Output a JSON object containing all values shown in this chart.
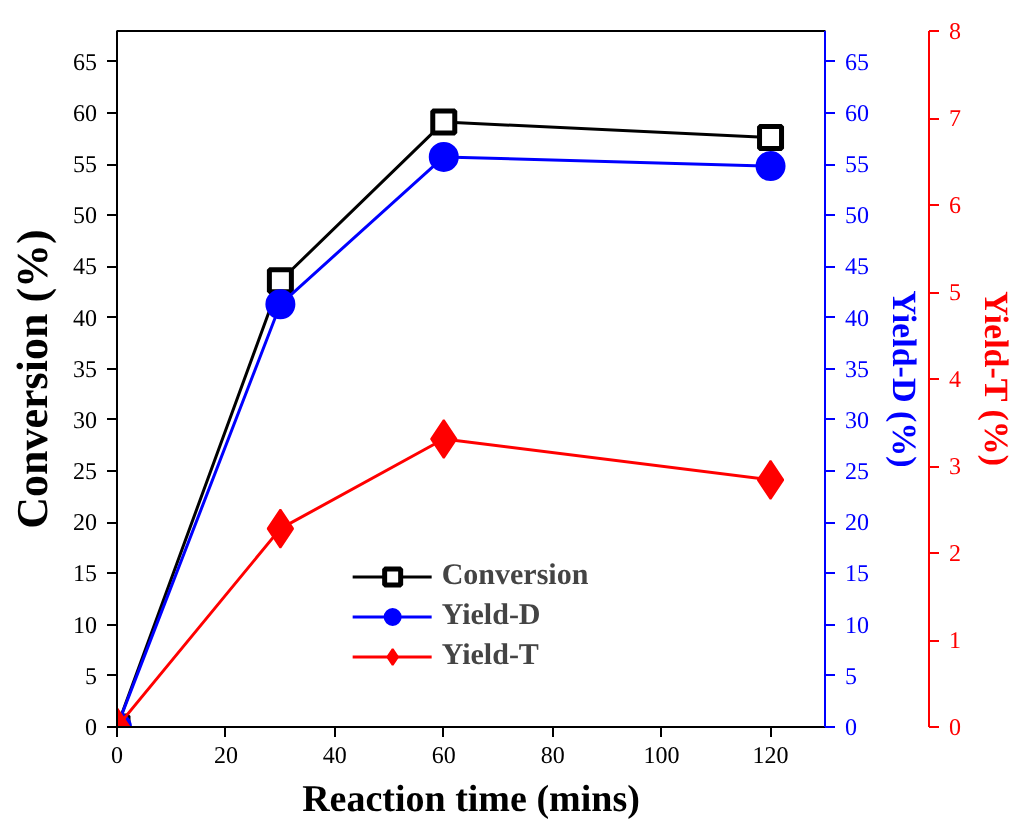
{
  "chart_data": {
    "type": "line",
    "xlabel": "Reaction time (mins)",
    "ylabel": "Conversion (%)",
    "y2label": "Yield-D (%)",
    "y3label": "Yield-T (%)",
    "x": [
      0,
      30,
      60,
      120
    ],
    "series": [
      {
        "name": "Conversion",
        "color": "#000000",
        "marker": "square",
        "values": [
          0,
          43.6,
          59.1,
          57.6
        ]
      },
      {
        "name": "Yield-D",
        "color": "#0000ff",
        "marker": "circle",
        "axis": "y2",
        "values": [
          0,
          41.3,
          55.7,
          54.8
        ]
      },
      {
        "name": "Yield-T",
        "color": "#ff0000",
        "marker": "diamond",
        "axis": "y3",
        "values": [
          0,
          2.28,
          3.31,
          2.84
        ]
      }
    ],
    "xlim": [
      0,
      130
    ],
    "xticks": [
      0,
      20,
      40,
      60,
      80,
      100,
      120
    ],
    "ylim": [
      0,
      68
    ],
    "yticks": [
      0,
      5,
      10,
      15,
      20,
      25,
      30,
      35,
      40,
      45,
      50,
      55,
      60,
      65
    ],
    "y2lim": [
      0,
      68
    ],
    "y2ticks": [
      0,
      5,
      10,
      15,
      20,
      25,
      30,
      35,
      40,
      45,
      50,
      55,
      60,
      65
    ],
    "y3lim": [
      0,
      8
    ],
    "y3ticks": [
      0,
      1,
      2,
      3,
      4,
      5,
      6,
      7,
      8
    ],
    "grid": false,
    "legend": "bottom",
    "line_style": "solid"
  }
}
